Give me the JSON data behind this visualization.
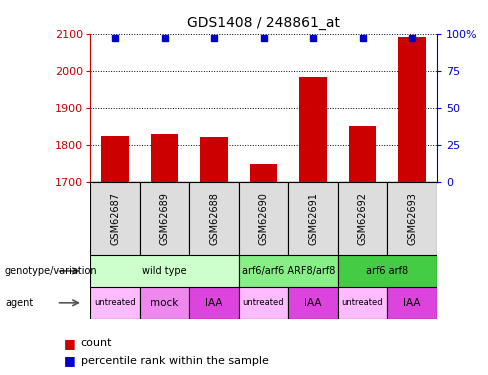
{
  "title": "GDS1408 / 248861_at",
  "samples": [
    "GSM62687",
    "GSM62689",
    "GSM62688",
    "GSM62690",
    "GSM62691",
    "GSM62692",
    "GSM62693"
  ],
  "counts": [
    1825,
    1830,
    1822,
    1748,
    1982,
    1850,
    2090
  ],
  "percentile_rank": 97,
  "ylim_left": [
    1700,
    2100
  ],
  "ylim_right": [
    0,
    100
  ],
  "yticks_left": [
    1700,
    1800,
    1900,
    2000,
    2100
  ],
  "yticks_right": [
    0,
    25,
    50,
    75,
    100
  ],
  "bar_color": "#cc0000",
  "dot_color": "#0000cc",
  "left_axis_color": "#cc0000",
  "right_axis_color": "#0000cc",
  "genotype_groups": [
    {
      "label": "wild type",
      "span": [
        0,
        3
      ],
      "color": "#ccffcc"
    },
    {
      "label": "arf6/arf6 ARF8/arf8",
      "span": [
        3,
        5
      ],
      "color": "#88ee88"
    },
    {
      "label": "arf6 arf8",
      "span": [
        5,
        7
      ],
      "color": "#44cc44"
    }
  ],
  "agent_groups": [
    {
      "label": "untreated",
      "span": [
        0,
        1
      ],
      "color": "#ffbbff"
    },
    {
      "label": "mock",
      "span": [
        1,
        2
      ],
      "color": "#ee88ee"
    },
    {
      "label": "IAA",
      "span": [
        2,
        3
      ],
      "color": "#dd44dd"
    },
    {
      "label": "untreated",
      "span": [
        3,
        4
      ],
      "color": "#ffbbff"
    },
    {
      "label": "IAA",
      "span": [
        4,
        5
      ],
      "color": "#dd44dd"
    },
    {
      "label": "untreated",
      "span": [
        5,
        6
      ],
      "color": "#ffbbff"
    },
    {
      "label": "IAA",
      "span": [
        6,
        7
      ],
      "color": "#dd44dd"
    }
  ]
}
